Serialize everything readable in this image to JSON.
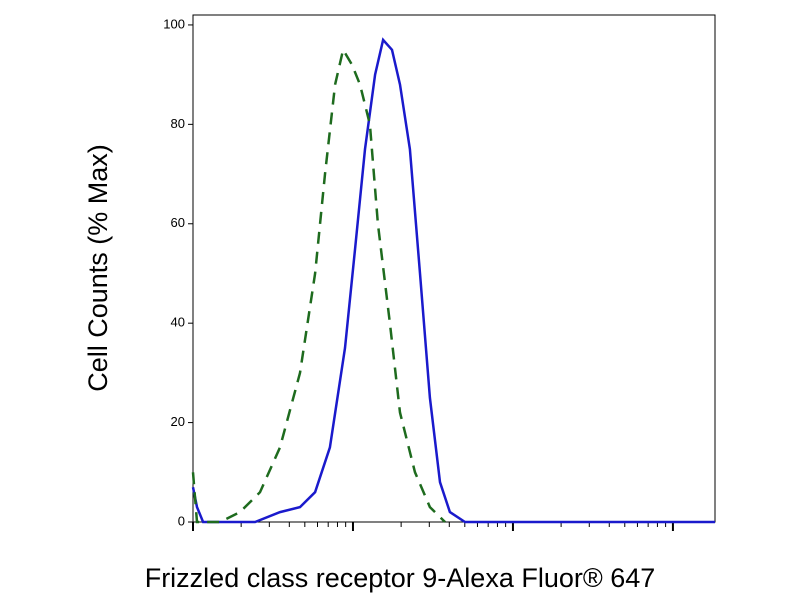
{
  "chart_data": {
    "type": "line",
    "x_label": "Frizzled class receptor 9-Alexa Fluor® 647",
    "y_label": "Cell Counts (% Max)",
    "xlim": [
      0,
      3.263
    ],
    "xticks": [
      0,
      1,
      2,
      3
    ],
    "ylim": [
      0,
      102
    ],
    "yticks": [
      0,
      20,
      40,
      60,
      80,
      100
    ],
    "series": [
      {
        "color": "#1a1acc",
        "dash": false,
        "x": [
          0,
          0.025,
          0.063,
          0.388,
          0.544,
          0.669,
          0.763,
          0.856,
          0.95,
          1.013,
          1.075,
          1.138,
          1.188,
          1.244,
          1.294,
          1.356,
          1.419,
          1.481,
          1.544,
          1.606,
          1.7,
          3.263
        ],
        "values": [
          7,
          3,
          0,
          0,
          2,
          3,
          6,
          15,
          35,
          55,
          75,
          90,
          97,
          95,
          88,
          75,
          50,
          25,
          8,
          2,
          0,
          0
        ]
      },
      {
        "color": "#1e6b1e",
        "dash": true,
        "x": [
          0,
          0.025,
          0.169,
          0.294,
          0.419,
          0.544,
          0.669,
          0.763,
          0.825,
          0.888,
          0.938,
          0.994,
          1.044,
          1.106,
          1.156,
          1.231,
          1.294,
          1.388,
          1.481,
          1.575
        ],
        "values": [
          10,
          0,
          0,
          2,
          6,
          15,
          30,
          50,
          70,
          88,
          95,
          92,
          88,
          80,
          60,
          40,
          22,
          10,
          3,
          0
        ]
      }
    ]
  }
}
